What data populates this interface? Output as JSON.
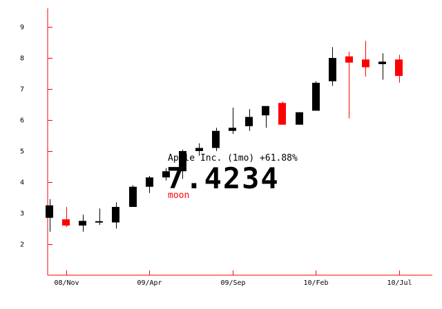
{
  "colors": {
    "axis": "#ff0000",
    "up": "#000000",
    "down": "#ff0000",
    "text": "#000000"
  },
  "overlay": {
    "title": "Apple Inc. (1mo) +61.88%",
    "price": "7.4234",
    "label": "moon"
  },
  "chart_data": {
    "type": "candlestick",
    "ylim": [
      1,
      9.6
    ],
    "yticks": [
      2,
      3,
      4,
      5,
      6,
      7,
      8,
      9
    ],
    "xticks": [
      {
        "index": 1,
        "label": "08/Nov"
      },
      {
        "index": 6,
        "label": "09/Apr"
      },
      {
        "index": 11,
        "label": "09/Sep"
      },
      {
        "index": 16,
        "label": "10/Feb"
      },
      {
        "index": 21,
        "label": "10/Jul"
      }
    ],
    "candles": [
      {
        "o": 2.85,
        "h": 3.45,
        "l": 2.4,
        "c": 3.25
      },
      {
        "o": 2.8,
        "h": 3.2,
        "l": 2.55,
        "c": 2.6
      },
      {
        "o": 2.6,
        "h": 2.95,
        "l": 2.4,
        "c": 2.75
      },
      {
        "o": 2.72,
        "h": 3.15,
        "l": 2.62,
        "c": 2.74
      },
      {
        "o": 2.7,
        "h": 3.35,
        "l": 2.5,
        "c": 3.2
      },
      {
        "o": 3.2,
        "h": 3.9,
        "l": 3.2,
        "c": 3.85
      },
      {
        "o": 3.85,
        "h": 4.2,
        "l": 3.65,
        "c": 4.15
      },
      {
        "o": 4.15,
        "h": 4.45,
        "l": 4.05,
        "c": 4.35
      },
      {
        "o": 4.35,
        "h": 5.05,
        "l": 4.1,
        "c": 5.0
      },
      {
        "o": 5.0,
        "h": 5.25,
        "l": 4.85,
        "c": 5.1
      },
      {
        "o": 5.1,
        "h": 5.75,
        "l": 5.0,
        "c": 5.65
      },
      {
        "o": 5.65,
        "h": 6.4,
        "l": 5.55,
        "c": 5.75
      },
      {
        "o": 5.8,
        "h": 6.35,
        "l": 5.65,
        "c": 6.1
      },
      {
        "o": 6.15,
        "h": 6.45,
        "l": 5.75,
        "c": 6.45
      },
      {
        "o": 6.55,
        "h": 6.6,
        "l": 5.85,
        "c": 5.85
      },
      {
        "o": 5.85,
        "h": 6.25,
        "l": 5.85,
        "c": 6.25
      },
      {
        "o": 6.3,
        "h": 7.25,
        "l": 6.3,
        "c": 7.2
      },
      {
        "o": 7.25,
        "h": 8.35,
        "l": 7.1,
        "c": 8.0
      },
      {
        "o": 8.05,
        "h": 8.2,
        "l": 6.05,
        "c": 7.85
      },
      {
        "o": 7.95,
        "h": 8.55,
        "l": 7.4,
        "c": 7.7
      },
      {
        "o": 7.8,
        "h": 8.15,
        "l": 7.3,
        "c": 7.88
      },
      {
        "o": 7.95,
        "h": 8.1,
        "l": 7.2,
        "c": 7.42
      }
    ]
  }
}
